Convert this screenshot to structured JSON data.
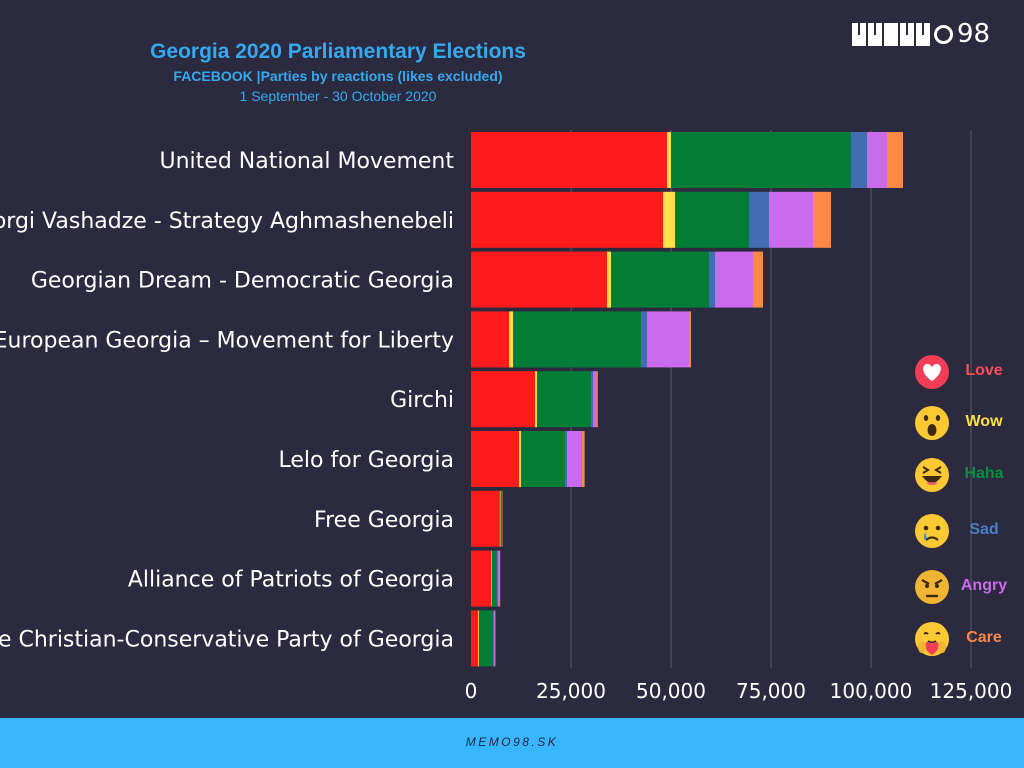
{
  "header": {
    "title": "Georgia 2020 Parliamentary Elections",
    "subtitle": "FACEBOOK |Parties by reactions (likes excluded)",
    "date_range": "1 September - 30 October 2020"
  },
  "logo": {
    "text": "98"
  },
  "footer": {
    "text": "MEMO98.SK"
  },
  "colors": {
    "background": "#2b2a3f",
    "title": "#35a9f0",
    "footer_bar": "#38b6ff",
    "Love": "#ff1b1b",
    "Wow": "#fde146",
    "Haha": "#027d38",
    "Sad": "#436cb3",
    "Angry": "#c96bea",
    "Care": "#fd8946"
  },
  "legend": [
    {
      "label": "Love",
      "icon": "love-heart-icon",
      "color": "#ff4d58"
    },
    {
      "label": "Wow",
      "icon": "wow-face-icon",
      "color": "#fde146"
    },
    {
      "label": "Haha",
      "icon": "haha-face-icon",
      "color": "#07913d"
    },
    {
      "label": "Sad",
      "icon": "sad-face-icon",
      "color": "#4a7fc8"
    },
    {
      "label": "Angry",
      "icon": "angry-face-icon",
      "color": "#c96bea"
    },
    {
      "label": "Care",
      "icon": "care-face-icon",
      "color": "#fd8946"
    }
  ],
  "chart_data": {
    "type": "bar",
    "orientation": "horizontal",
    "stacked": true,
    "categories": [
      "United National Movement",
      "Giorgi Vashadze - Strategy Aghmashenebeli",
      "Georgian Dream - Democratic Georgia",
      "European Georgia – Movement for Liberty",
      "Girchi",
      "Lelo for Georgia",
      "Free Georgia",
      "Alliance of Patriots of Georgia",
      "The Christian-Conservative Party of Georgia"
    ],
    "series": [
      {
        "name": "Love",
        "values": [
          49000,
          48000,
          34000,
          9500,
          16000,
          12000,
          7200,
          5000,
          1800
        ]
      },
      {
        "name": "Wow",
        "values": [
          1000,
          3000,
          1000,
          1000,
          500,
          500,
          200,
          200,
          200
        ]
      },
      {
        "name": "Haha",
        "values": [
          45000,
          18500,
          24500,
          32000,
          13500,
          11000,
          200,
          1200,
          3500
        ]
      },
      {
        "name": "Sad",
        "values": [
          4000,
          5000,
          1500,
          1500,
          500,
          500,
          100,
          300,
          200
        ]
      },
      {
        "name": "Angry",
        "values": [
          5000,
          11000,
          9500,
          10500,
          800,
          3700,
          100,
          400,
          300
        ]
      },
      {
        "name": "Care",
        "values": [
          4000,
          4500,
          2500,
          500,
          400,
          700,
          100,
          200,
          100
        ]
      }
    ],
    "xlim": [
      0,
      125000
    ],
    "xticks": [
      0,
      25000,
      50000,
      75000,
      100000,
      125000
    ],
    "xtick_labels": [
      "0",
      "25,000",
      "50,000",
      "75,000",
      "100,000",
      "125,000"
    ],
    "grid": "vertical",
    "legend_position": "right"
  }
}
